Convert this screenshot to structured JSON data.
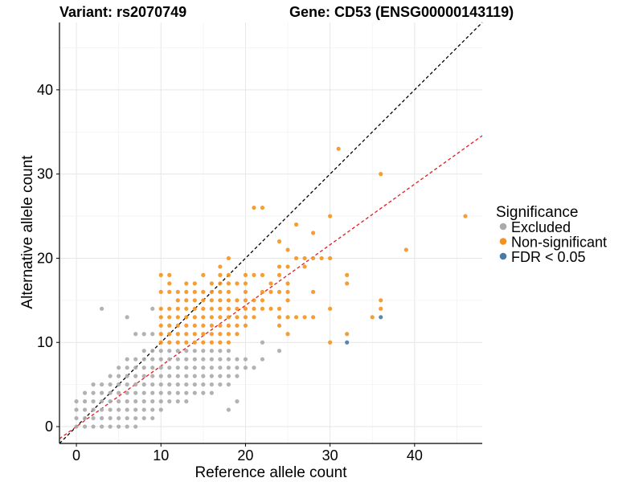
{
  "titles": {
    "variant": "Variant: rs2070749",
    "gene": "Gene: CD53 (ENSG00000143119)"
  },
  "chart_data": {
    "type": "scatter",
    "xlabel": "Reference allele count",
    "ylabel": "Alternative allele count",
    "xlim": [
      -2,
      48
    ],
    "ylim": [
      -2,
      48
    ],
    "xticks": [
      "0",
      "10",
      "20",
      "30",
      "40"
    ],
    "yticks": [
      "0",
      "10",
      "20",
      "30",
      "40"
    ],
    "grid": true,
    "legend": {
      "title": "Significance",
      "placement": "right",
      "entries": [
        {
          "label": "Excluded",
          "color": "#aaaaaa"
        },
        {
          "label": "Non-significant",
          "color": "#f5921e"
        },
        {
          "label": "FDR < 0.05",
          "color": "#4a79a5"
        }
      ]
    },
    "reference_lines": [
      {
        "style": "dashed",
        "color": "#000000",
        "slope": 1,
        "intercept": 0
      },
      {
        "style": "dashed",
        "color": "#e41a1c",
        "slope": 0.72,
        "intercept": 0
      }
    ],
    "series": [
      {
        "name": "Excluded",
        "color": "#aaaaaa",
        "points": [
          [
            0,
            0
          ],
          [
            0,
            1
          ],
          [
            0,
            2
          ],
          [
            0,
            3
          ],
          [
            1,
            0
          ],
          [
            1,
            1
          ],
          [
            1,
            2
          ],
          [
            1,
            3
          ],
          [
            1,
            4
          ],
          [
            2,
            0
          ],
          [
            2,
            1
          ],
          [
            2,
            2
          ],
          [
            2,
            3
          ],
          [
            2,
            4
          ],
          [
            2,
            5
          ],
          [
            3,
            0
          ],
          [
            3,
            1
          ],
          [
            3,
            2
          ],
          [
            3,
            3
          ],
          [
            3,
            4
          ],
          [
            3,
            5
          ],
          [
            3,
            14
          ],
          [
            4,
            0
          ],
          [
            4,
            1
          ],
          [
            4,
            2
          ],
          [
            4,
            3
          ],
          [
            4,
            4
          ],
          [
            4,
            5
          ],
          [
            4,
            6
          ],
          [
            5,
            0
          ],
          [
            5,
            1
          ],
          [
            5,
            2
          ],
          [
            5,
            3
          ],
          [
            5,
            4
          ],
          [
            5,
            5
          ],
          [
            5,
            6
          ],
          [
            5,
            7
          ],
          [
            6,
            0
          ],
          [
            6,
            1
          ],
          [
            6,
            2
          ],
          [
            6,
            3
          ],
          [
            6,
            4
          ],
          [
            6,
            5
          ],
          [
            6,
            6
          ],
          [
            6,
            7
          ],
          [
            6,
            8
          ],
          [
            6,
            13
          ],
          [
            7,
            0
          ],
          [
            7,
            1
          ],
          [
            7,
            2
          ],
          [
            7,
            3
          ],
          [
            7,
            4
          ],
          [
            7,
            5
          ],
          [
            7,
            6
          ],
          [
            7,
            7
          ],
          [
            7,
            8
          ],
          [
            7,
            11
          ],
          [
            8,
            1
          ],
          [
            8,
            2
          ],
          [
            8,
            3
          ],
          [
            8,
            4
          ],
          [
            8,
            5
          ],
          [
            8,
            6
          ],
          [
            8,
            7
          ],
          [
            8,
            8
          ],
          [
            8,
            9
          ],
          [
            8,
            11
          ],
          [
            9,
            1
          ],
          [
            9,
            2
          ],
          [
            9,
            3
          ],
          [
            9,
            4
          ],
          [
            9,
            5
          ],
          [
            9,
            6
          ],
          [
            9,
            7
          ],
          [
            9,
            8
          ],
          [
            9,
            9
          ],
          [
            9,
            11
          ],
          [
            9,
            14
          ],
          [
            10,
            2
          ],
          [
            10,
            3
          ],
          [
            10,
            4
          ],
          [
            10,
            5
          ],
          [
            10,
            6
          ],
          [
            10,
            7
          ],
          [
            10,
            8
          ],
          [
            10,
            9
          ],
          [
            11,
            3
          ],
          [
            11,
            4
          ],
          [
            11,
            5
          ],
          [
            11,
            6
          ],
          [
            11,
            7
          ],
          [
            11,
            8
          ],
          [
            11,
            9
          ],
          [
            12,
            3
          ],
          [
            12,
            4
          ],
          [
            12,
            5
          ],
          [
            12,
            6
          ],
          [
            12,
            7
          ],
          [
            12,
            8
          ],
          [
            12,
            9
          ],
          [
            13,
            3
          ],
          [
            13,
            4
          ],
          [
            13,
            5
          ],
          [
            13,
            6
          ],
          [
            13,
            7
          ],
          [
            13,
            8
          ],
          [
            13,
            9
          ],
          [
            14,
            4
          ],
          [
            14,
            5
          ],
          [
            14,
            6
          ],
          [
            14,
            7
          ],
          [
            14,
            8
          ],
          [
            14,
            9
          ],
          [
            15,
            4
          ],
          [
            15,
            5
          ],
          [
            15,
            6
          ],
          [
            15,
            7
          ],
          [
            15,
            8
          ],
          [
            15,
            9
          ],
          [
            16,
            4
          ],
          [
            16,
            5
          ],
          [
            16,
            6
          ],
          [
            16,
            7
          ],
          [
            16,
            8
          ],
          [
            16,
            9
          ],
          [
            17,
            5
          ],
          [
            17,
            6
          ],
          [
            17,
            7
          ],
          [
            17,
            8
          ],
          [
            17,
            9
          ],
          [
            18,
            2
          ],
          [
            18,
            5
          ],
          [
            18,
            6
          ],
          [
            18,
            7
          ],
          [
            18,
            8
          ],
          [
            18,
            9
          ],
          [
            19,
            3
          ],
          [
            19,
            6
          ],
          [
            19,
            7
          ],
          [
            19,
            8
          ],
          [
            20,
            7
          ],
          [
            20,
            8
          ],
          [
            21,
            7
          ],
          [
            22,
            8
          ],
          [
            22,
            10
          ],
          [
            24,
            9
          ]
        ]
      },
      {
        "name": "Non-significant",
        "color": "#f5921e",
        "points": [
          [
            10,
            10
          ],
          [
            10,
            11
          ],
          [
            10,
            12
          ],
          [
            10,
            13
          ],
          [
            10,
            14
          ],
          [
            10,
            16
          ],
          [
            10,
            18
          ],
          [
            11,
            10
          ],
          [
            11,
            11
          ],
          [
            11,
            12
          ],
          [
            11,
            13
          ],
          [
            11,
            14
          ],
          [
            11,
            16
          ],
          [
            11,
            17
          ],
          [
            11,
            18
          ],
          [
            12,
            10
          ],
          [
            12,
            11
          ],
          [
            12,
            12
          ],
          [
            12,
            13
          ],
          [
            12,
            14
          ],
          [
            12,
            15
          ],
          [
            12,
            16
          ],
          [
            13,
            10
          ],
          [
            13,
            11
          ],
          [
            13,
            12
          ],
          [
            13,
            13
          ],
          [
            13,
            14
          ],
          [
            13,
            15
          ],
          [
            13,
            16
          ],
          [
            13,
            17
          ],
          [
            14,
            10
          ],
          [
            14,
            11
          ],
          [
            14,
            12
          ],
          [
            14,
            13
          ],
          [
            14,
            14
          ],
          [
            14,
            15
          ],
          [
            14,
            16
          ],
          [
            14,
            17
          ],
          [
            15,
            10
          ],
          [
            15,
            11
          ],
          [
            15,
            12
          ],
          [
            15,
            13
          ],
          [
            15,
            14
          ],
          [
            15,
            15
          ],
          [
            15,
            16
          ],
          [
            15,
            18
          ],
          [
            16,
            10
          ],
          [
            16,
            11
          ],
          [
            16,
            12
          ],
          [
            16,
            13
          ],
          [
            16,
            14
          ],
          [
            16,
            15
          ],
          [
            16,
            16
          ],
          [
            16,
            17
          ],
          [
            17,
            10
          ],
          [
            17,
            11
          ],
          [
            17,
            12
          ],
          [
            17,
            13
          ],
          [
            17,
            14
          ],
          [
            17,
            15
          ],
          [
            17,
            16
          ],
          [
            17,
            17
          ],
          [
            17,
            18
          ],
          [
            17,
            19
          ],
          [
            18,
            10
          ],
          [
            18,
            11
          ],
          [
            18,
            12
          ],
          [
            18,
            13
          ],
          [
            18,
            14
          ],
          [
            18,
            15
          ],
          [
            18,
            16
          ],
          [
            18,
            17
          ],
          [
            18,
            18
          ],
          [
            18,
            20
          ],
          [
            19,
            11
          ],
          [
            19,
            12
          ],
          [
            19,
            13
          ],
          [
            19,
            14
          ],
          [
            19,
            15
          ],
          [
            19,
            17
          ],
          [
            20,
            12
          ],
          [
            20,
            13
          ],
          [
            20,
            14
          ],
          [
            20,
            15
          ],
          [
            20,
            16
          ],
          [
            20,
            17
          ],
          [
            20,
            18
          ],
          [
            21,
            13
          ],
          [
            21,
            14
          ],
          [
            21,
            15
          ],
          [
            21,
            18
          ],
          [
            21,
            26
          ],
          [
            22,
            14
          ],
          [
            22,
            15
          ],
          [
            22,
            16
          ],
          [
            22,
            18
          ],
          [
            22,
            26
          ],
          [
            23,
            14
          ],
          [
            23,
            16
          ],
          [
            23,
            17
          ],
          [
            24,
            12
          ],
          [
            24,
            13
          ],
          [
            24,
            14
          ],
          [
            24,
            16
          ],
          [
            24,
            18
          ],
          [
            24,
            19
          ],
          [
            24,
            22
          ],
          [
            25,
            11
          ],
          [
            25,
            13
          ],
          [
            25,
            15
          ],
          [
            25,
            16
          ],
          [
            25,
            17
          ],
          [
            25,
            19
          ],
          [
            25,
            21
          ],
          [
            26,
            13
          ],
          [
            26,
            20
          ],
          [
            26,
            24
          ],
          [
            27,
            13
          ],
          [
            27,
            19
          ],
          [
            27,
            20
          ],
          [
            28,
            13
          ],
          [
            28,
            16
          ],
          [
            28,
            20
          ],
          [
            28,
            23
          ],
          [
            29,
            20
          ],
          [
            30,
            10
          ],
          [
            30,
            14
          ],
          [
            30,
            20
          ],
          [
            30,
            25
          ],
          [
            31,
            33
          ],
          [
            32,
            11
          ],
          [
            32,
            17
          ],
          [
            32,
            18
          ],
          [
            35,
            13
          ],
          [
            36,
            14
          ],
          [
            36,
            15
          ],
          [
            36,
            30
          ],
          [
            39,
            21
          ],
          [
            46,
            25
          ]
        ]
      },
      {
        "name": "FDR < 0.05",
        "color": "#4a79a5",
        "points": [
          [
            32,
            10
          ],
          [
            36,
            13
          ]
        ]
      }
    ]
  }
}
